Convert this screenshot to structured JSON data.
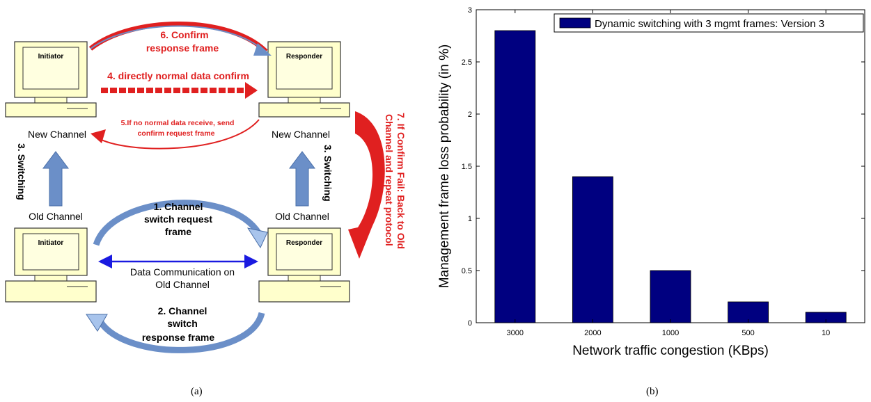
{
  "panel_a": {
    "caption": "(a)",
    "top_left_pc": "Initiator",
    "top_right_pc": "Responder",
    "bottom_left_pc": "Initiator",
    "bottom_right_pc": "Responder",
    "step6_line1": "6. Confirm",
    "step6_line2": "response frame",
    "step4": "4. directly normal data confirm",
    "step5_line1": "5.If no normal data receive, send",
    "step5_line2": "confirm request  frame",
    "step7_line1": "7. If Confirm Fail: Back to Old",
    "step7_line2": "Channel and repeat protocol",
    "new_channel_left": "New Channel",
    "new_channel_right": "New Channel",
    "old_channel_left": "Old Channel",
    "old_channel_right": "Old Channel",
    "switching_left": "3. Switching",
    "switching_right": "3. Switching",
    "step1_line1": "1. Channel",
    "step1_line2": "switch request",
    "step1_line3": "frame",
    "data_comm_line1": "Data Communication on",
    "data_comm_line2": "Old Channel",
    "step2_line1": "2. Channel",
    "step2_line2": "switch",
    "step2_line3": "response frame",
    "colors": {
      "red": "#e02020",
      "blue": "#6b8fc8",
      "dark_blue": "#1a1ae0"
    }
  },
  "panel_b": {
    "caption": "(b)",
    "bar_color": "#000080"
  },
  "chart_data": {
    "type": "bar",
    "categories": [
      "3000",
      "2000",
      "1000",
      "500",
      "10"
    ],
    "series": [
      {
        "name": "Dynamic switching with 3 mgmt frames: Version 3",
        "values": [
          2.8,
          1.4,
          0.5,
          0.2,
          0.1
        ]
      }
    ],
    "xlabel": "Network traffic congestion (KBps)",
    "ylabel": "Management frame loss probability (in %)",
    "ylim": [
      0,
      3
    ],
    "yticks": [
      "0",
      "0.5",
      "1",
      "1.5",
      "2",
      "2.5",
      "3"
    ],
    "grid": false,
    "legend": "top-right"
  }
}
